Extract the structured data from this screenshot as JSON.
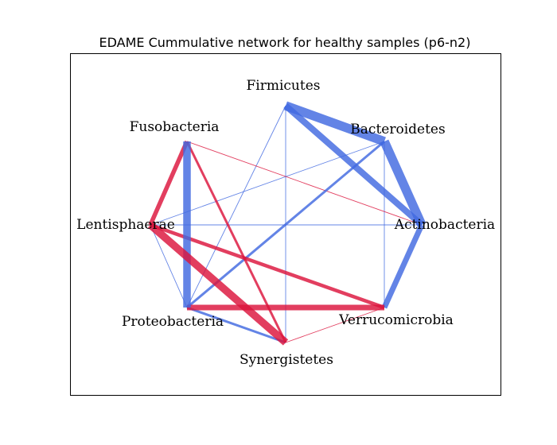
{
  "figure": {
    "title": "EDAME Cummulative network for healthy samples (p6-n2)"
  },
  "colors": {
    "positive": "#4169e1",
    "negative": "#dc143c",
    "frame": "#000000",
    "background": "#ffffff"
  },
  "nodes": [
    {
      "id": "firmicutes",
      "label": "Firmicutes"
    },
    {
      "id": "bacteroidetes",
      "label": "Bacteroidetes"
    },
    {
      "id": "actinobacteria",
      "label": "Actinobacteria"
    },
    {
      "id": "verrucomicrobia",
      "label": "Verrucomicrobia"
    },
    {
      "id": "synergistetes",
      "label": "Synergistetes"
    },
    {
      "id": "proteobacteria",
      "label": "Proteobacteria"
    },
    {
      "id": "lentisphaerae",
      "label": "Lentisphaerae"
    },
    {
      "id": "fusobacteria",
      "label": "Fusobacteria"
    }
  ],
  "edges": [
    {
      "source": "firmicutes",
      "target": "bacteroidetes",
      "sign": "positive",
      "weight": 9
    },
    {
      "source": "firmicutes",
      "target": "actinobacteria",
      "sign": "positive",
      "weight": 7
    },
    {
      "source": "bacteroidetes",
      "target": "actinobacteria",
      "sign": "positive",
      "weight": 9
    },
    {
      "source": "actinobacteria",
      "target": "verrucomicrobia",
      "sign": "positive",
      "weight": 6
    },
    {
      "source": "fusobacteria",
      "target": "proteobacteria",
      "sign": "positive",
      "weight": 8
    },
    {
      "source": "bacteroidetes",
      "target": "proteobacteria",
      "sign": "positive",
      "weight": 3
    },
    {
      "source": "proteobacteria",
      "target": "synergistetes",
      "sign": "positive",
      "weight": 3
    },
    {
      "source": "firmicutes",
      "target": "proteobacteria",
      "sign": "positive",
      "weight": 1
    },
    {
      "source": "firmicutes",
      "target": "synergistetes",
      "sign": "positive",
      "weight": 1
    },
    {
      "source": "bacteroidetes",
      "target": "lentisphaerae",
      "sign": "positive",
      "weight": 1
    },
    {
      "source": "bacteroidetes",
      "target": "verrucomicrobia",
      "sign": "positive",
      "weight": 1
    },
    {
      "source": "lentisphaerae",
      "target": "actinobacteria",
      "sign": "positive",
      "weight": 1
    },
    {
      "source": "lentisphaerae",
      "target": "proteobacteria",
      "sign": "positive",
      "weight": 1
    },
    {
      "source": "lentisphaerae",
      "target": "synergistetes",
      "sign": "negative",
      "weight": 8
    },
    {
      "source": "fusobacteria",
      "target": "lentisphaerae",
      "sign": "negative",
      "weight": 5
    },
    {
      "source": "proteobacteria",
      "target": "verrucomicrobia",
      "sign": "negative",
      "weight": 6
    },
    {
      "source": "lentisphaerae",
      "target": "verrucomicrobia",
      "sign": "negative",
      "weight": 4
    },
    {
      "source": "fusobacteria",
      "target": "synergistetes",
      "sign": "negative",
      "weight": 3
    },
    {
      "source": "fusobacteria",
      "target": "actinobacteria",
      "sign": "negative",
      "weight": 1
    },
    {
      "source": "synergistetes",
      "target": "verrucomicrobia",
      "sign": "negative",
      "weight": 1
    }
  ]
}
